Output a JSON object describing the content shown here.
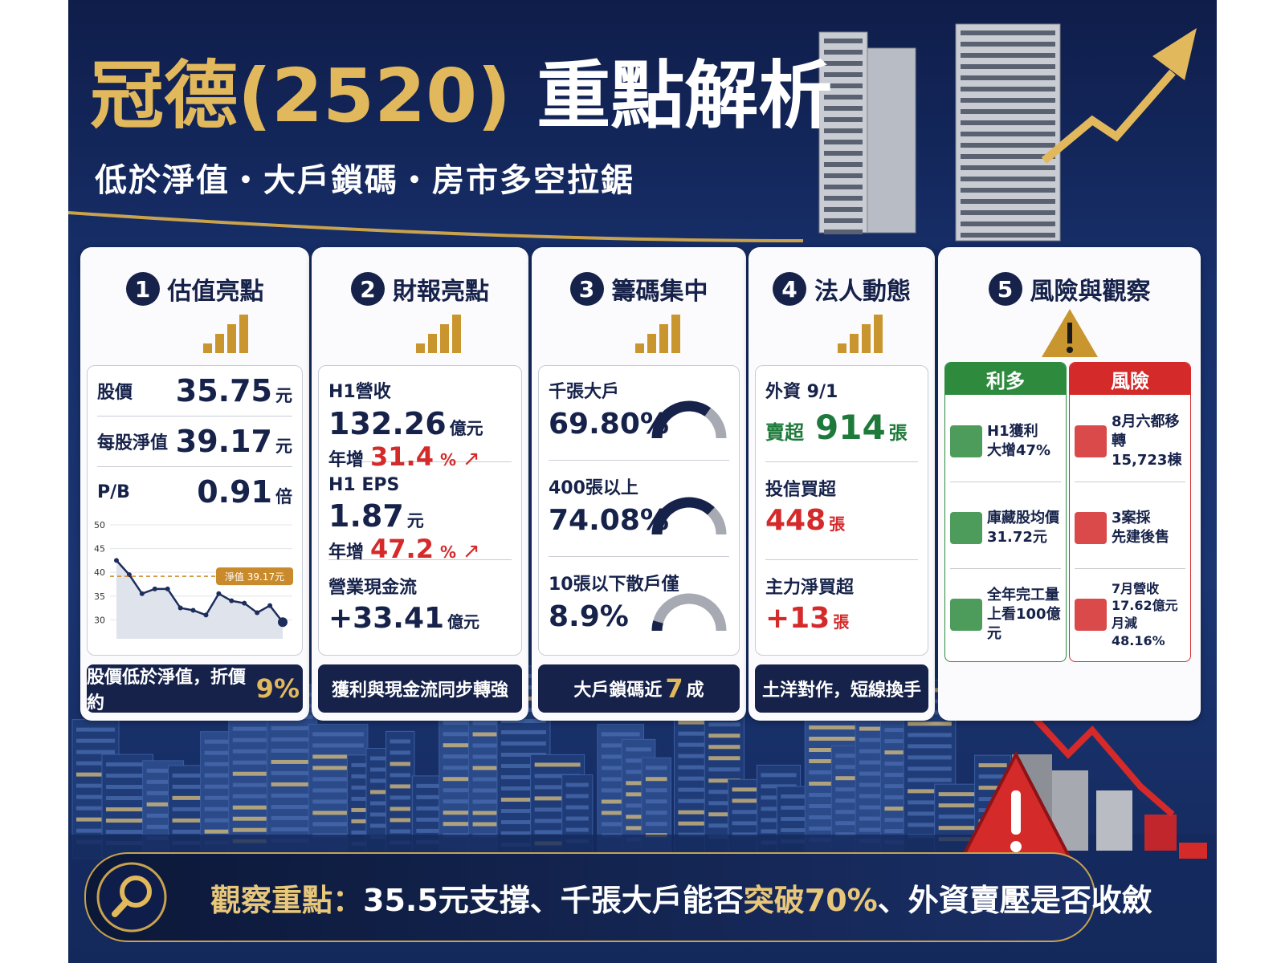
{
  "header": {
    "title_brand": "冠德(2520)",
    "title_rest": "重點解析",
    "subtitle": "低於淨值・大戶鎖碼・房市多空拉鋸"
  },
  "panels": [
    {
      "number": "1",
      "title": "估值亮點",
      "rows": [
        {
          "label": "股價",
          "value": "35.75",
          "unit": "元"
        },
        {
          "label": "每股淨值",
          "value": "39.17",
          "unit": "元"
        },
        {
          "label": "P/B",
          "value": "0.91",
          "unit": "倍"
        }
      ],
      "chart": {
        "type": "line",
        "values": [
          42.5,
          39.5,
          35.5,
          36.5,
          36.5,
          32.5,
          32,
          31,
          35.5,
          34,
          33.5,
          31.5,
          33,
          29.5
        ],
        "ylim": [
          26,
          50
        ],
        "yticks": [
          30,
          35,
          40,
          45,
          50
        ],
        "grid": true,
        "color": "#1d2d5c",
        "reference": {
          "value": 39.17,
          "label": "淨值 39.17元"
        },
        "reference_color": "#c98a2b"
      },
      "footer": [
        "股價低於淨值，折價約",
        "9%"
      ]
    },
    {
      "number": "2",
      "title": "財報亮點",
      "items": [
        {
          "label": "H1營收",
          "value": "132.26",
          "unit": "億元",
          "growth_label": "年增",
          "growth": "31.4",
          "growth_unit": "%"
        },
        {
          "label": "H1 EPS",
          "value": "1.87",
          "unit": "元",
          "growth_label": "年增",
          "growth": "47.2",
          "growth_unit": "%"
        },
        {
          "label": "營業現金流",
          "value": "+33.41",
          "unit": "億元"
        }
      ],
      "footer": [
        "獲利與現金流同步轉強"
      ]
    },
    {
      "number": "3",
      "title": "籌碼集中",
      "gauges": [
        {
          "label": "千張大戶",
          "value": 69.8,
          "value_label": "69.80%"
        },
        {
          "label": "400張以上",
          "value": 74.08,
          "value_label": "74.08%"
        },
        {
          "label": "10張以下散戶僅",
          "value": 8.9,
          "value_label": "8.9%"
        }
      ],
      "footer": [
        "大戶鎖碼近",
        "7",
        "成"
      ]
    },
    {
      "number": "4",
      "title": "法人動態",
      "items": [
        {
          "label": "外資 9/1",
          "prefix": "賣超",
          "value": "914",
          "unit": "張",
          "color": "#1e7a3a"
        },
        {
          "label": "投信買超",
          "value": "448",
          "unit": "張",
          "color": "#d42a2a"
        },
        {
          "label": "主力淨買超",
          "value": "+13",
          "unit": "張",
          "color": "#d42a2a"
        }
      ],
      "footer": [
        "土洋對作，短線換手"
      ]
    },
    {
      "number": "5",
      "title": "風險與觀察",
      "columns": [
        {
          "title": "利多",
          "color": "#2e8b3e",
          "items": [
            {
              "lines": [
                "H1獲利",
                "大增47%"
              ]
            },
            {
              "lines": [
                "庫藏股均價",
                "31.72元"
              ]
            },
            {
              "lines": [
                "全年完工量",
                "上看100億元"
              ]
            }
          ]
        },
        {
          "title": "風險",
          "color": "#d42a2a",
          "items": [
            {
              "lines": [
                "8月六都移轉",
                "15,723棟"
              ]
            },
            {
              "lines": [
                "3案採",
                "先建後售"
              ]
            },
            {
              "lines": [
                "7月營收",
                "17.62億元",
                "月減48.16%"
              ]
            }
          ]
        }
      ]
    }
  ],
  "footer": {
    "parts": [
      {
        "text": "觀察重點：",
        "color": "#e8c77a"
      },
      {
        "text": "35.5元支撐、千張大戶能否",
        "color": "#ffffff"
      },
      {
        "text": "突破70%",
        "color": "#e8c77a"
      },
      {
        "text": "、外資賣壓是否收斂",
        "color": "#ffffff"
      }
    ]
  }
}
